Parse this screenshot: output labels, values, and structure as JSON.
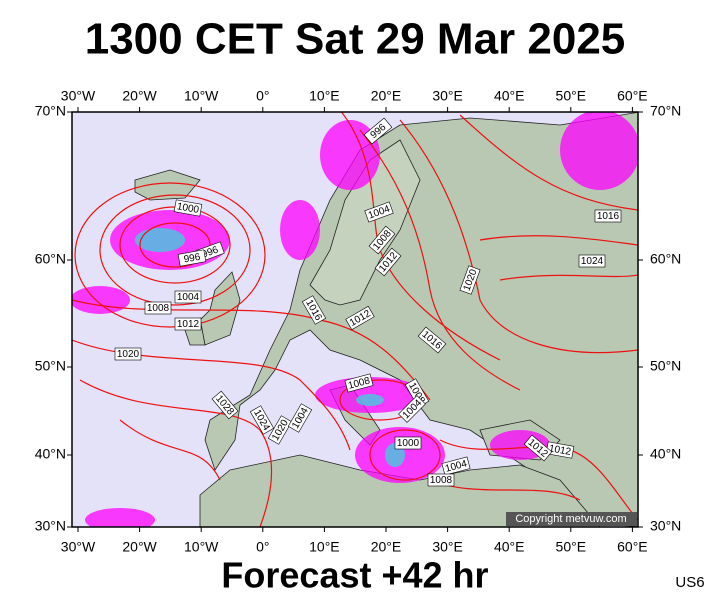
{
  "header": {
    "title": "1300 CET Sat 29 Mar 2025"
  },
  "footer": {
    "forecast": "Forecast +42 hr",
    "code": "US6"
  },
  "copyright": "Copyright metvuw.com",
  "lon_labels": [
    "30°W",
    "20°W",
    "10°W",
    "0°",
    "10°E",
    "20°E",
    "30°E",
    "40°E",
    "50°E",
    "60°E"
  ],
  "lat_labels": [
    "70°N",
    "60°N",
    "50°N",
    "40°N",
    "30°N"
  ],
  "isobar_labels": [
    "996",
    "1000",
    "996",
    "996",
    "1004",
    "1008",
    "1012",
    "1020",
    "1004",
    "1008",
    "1012",
    "1016",
    "1024",
    "1020",
    "1016",
    "1012",
    "1016",
    "1008",
    "1008",
    "1004",
    "1028",
    "1024",
    "1020",
    "1004",
    "1000",
    "1004",
    "1008",
    "1012",
    "1012"
  ]
}
